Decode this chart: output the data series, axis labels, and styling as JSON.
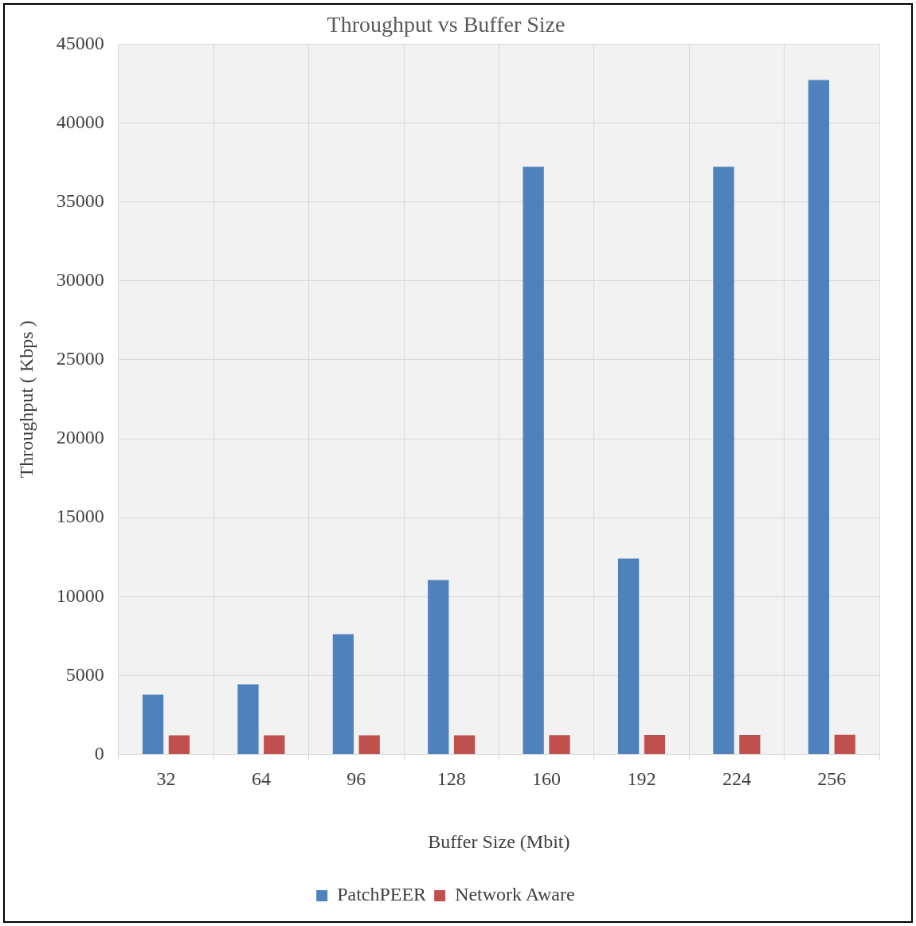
{
  "chart_data": {
    "type": "bar",
    "title": "Throughput vs Buffer Size",
    "xlabel": "Buffer Size (Mbit)",
    "ylabel": "Throughput ( Kbps )",
    "categories": [
      "32",
      "64",
      "96",
      "128",
      "160",
      "192",
      "224",
      "256"
    ],
    "series": [
      {
        "name": "PatchPEER",
        "color": "#4f81bd",
        "values": [
          3780,
          4440,
          7620,
          11050,
          37230,
          12410,
          37230,
          42730
        ]
      },
      {
        "name": "Network Aware",
        "color": "#c0504d",
        "values": [
          1200,
          1200,
          1200,
          1200,
          1220,
          1230,
          1230,
          1250
        ]
      }
    ],
    "ylim": [
      0,
      45000
    ],
    "yticks": [
      0,
      5000,
      10000,
      15000,
      20000,
      25000,
      30000,
      35000,
      40000,
      45000
    ],
    "grid": true,
    "legend": "bottom"
  }
}
